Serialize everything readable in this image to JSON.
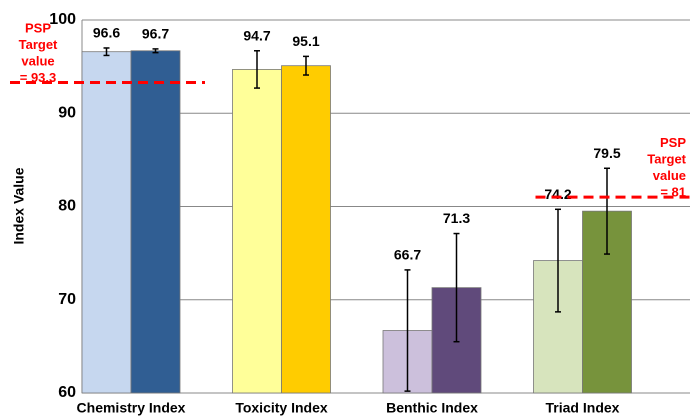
{
  "chart_data": {
    "type": "bar",
    "y_label": "Index Value",
    "categories": [
      "Chemistry Index",
      "Toxicity Index",
      "Benthic Index",
      "Triad Index"
    ],
    "series": [
      {
        "colors": [
          "#c6d7ef",
          "#ffff99",
          "#ccc0dc",
          "#d7e4bd"
        ],
        "values": [
          96.6,
          94.7,
          66.7,
          74.2
        ],
        "errors": [
          0.4,
          2,
          6.5,
          5.5
        ]
      },
      {
        "colors": [
          "#305e93",
          "#ffcc00",
          "#604a7b",
          "#77933c"
        ],
        "values": [
          96.7,
          95.1,
          71.3,
          79.5
        ],
        "errors": [
          0.2,
          1,
          5.8,
          4.6
        ]
      }
    ],
    "targets": [
      {
        "category": 0,
        "value": 93.3,
        "label_lines": [
          "PSP",
          "Target",
          "value",
          "= 93.3"
        ]
      },
      {
        "category": 3,
        "value": 81,
        "label_lines": [
          "PSP",
          "Target",
          "value",
          "= 81"
        ]
      }
    ],
    "ylim": [
      60,
      100
    ],
    "yticks": [
      60,
      70,
      80,
      90,
      100
    ],
    "grid": true
  }
}
